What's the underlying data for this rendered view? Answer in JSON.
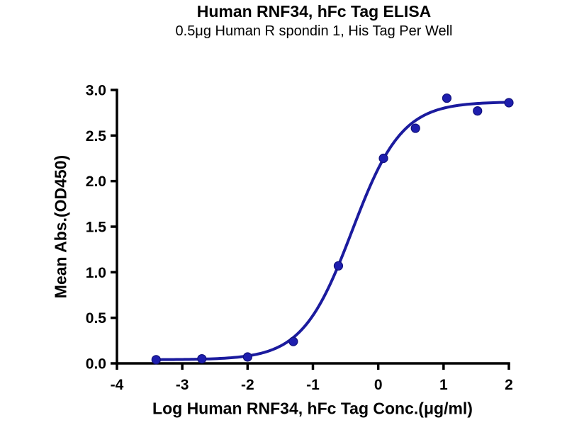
{
  "figure": {
    "background_color": "#ffffff",
    "text_color": "#000000"
  },
  "chart_data": {
    "type": "scatter",
    "title": "Human RNF34, hFc Tag ELISA",
    "subtitle": "0.5μg Human R spondin 1, His Tag Per Well",
    "xlabel": "Log Human RNF34, hFc Tag Conc.(μg/ml)",
    "ylabel": "Mean Abs.(OD450)",
    "xlim": [
      -4,
      2
    ],
    "ylim": [
      0,
      3
    ],
    "x_ticks": [
      -4,
      -3,
      -2,
      -1,
      0,
      1,
      2
    ],
    "x_tick_labels": [
      "-4",
      "-3",
      "-2",
      "-1",
      "0",
      "1",
      "2"
    ],
    "y_ticks": [
      0,
      0.5,
      1,
      1.5,
      2,
      2.5,
      3
    ],
    "y_tick_labels": [
      "0.0",
      "0.5",
      "1.0",
      "1.5",
      "2.0",
      "2.5",
      "3.0"
    ],
    "grid": false,
    "legend": "none",
    "axis_color": "#000000",
    "series": [
      {
        "name": "Human RNF34, hFc Tag",
        "line_color": "#1b1b9e",
        "marker_color": "#1e1eae",
        "marker_edge_color": "#10107c",
        "points": [
          {
            "x": -3.4,
            "y": 0.04
          },
          {
            "x": -2.7,
            "y": 0.05
          },
          {
            "x": -2.0,
            "y": 0.07
          },
          {
            "x": -1.3,
            "y": 0.24
          },
          {
            "x": -0.61,
            "y": 1.07
          },
          {
            "x": 0.08,
            "y": 2.25
          },
          {
            "x": 0.57,
            "y": 2.58
          },
          {
            "x": 1.05,
            "y": 2.91
          },
          {
            "x": 1.52,
            "y": 2.77
          },
          {
            "x": 2.0,
            "y": 2.86
          }
        ],
        "fit_4pl": {
          "bottom": 0.04,
          "top": 2.87,
          "log_ec50": -0.4,
          "hill": 1.14
        }
      }
    ]
  }
}
